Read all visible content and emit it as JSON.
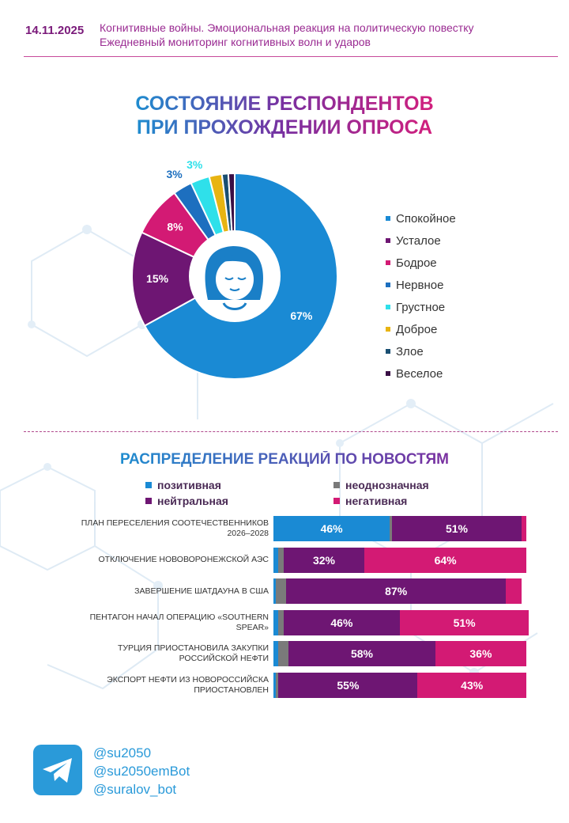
{
  "header": {
    "date": "14.11.2025",
    "line1": "Когнитивные войны. Эмоциональная реакция на политическую повестку",
    "line2": "Ежедневный мониторинг когнитивных волн и ударов"
  },
  "pie_title": {
    "line1": "СОСТОЯНИЕ РЕСПОНДЕНТОВ",
    "line2": "ПРИ ПРОХОЖДЕНИИ ОПРОСА"
  },
  "bars_title": "РАСПРЕДЕЛЕНИЕ РЕАКЦИЙ ПО НОВОСТЯМ",
  "icons": {
    "center": "face-icon",
    "social": "telegram-icon"
  },
  "chart_data": [
    {
      "type": "pie",
      "title": "СОСТОЯНИЕ РЕСПОНДЕНТОВ ПРИ ПРОХОЖДЕНИИ ОПРОСА",
      "categories": [
        "Спокойное",
        "Усталое",
        "Бодрое",
        "Нервное",
        "Грустное",
        "Доброе",
        "Злое",
        "Веселое"
      ],
      "values": [
        67,
        15,
        8,
        3,
        3,
        2,
        1,
        1
      ],
      "labels": [
        "67%",
        "15%",
        "8%",
        "3%",
        "3%",
        "",
        "",
        ""
      ],
      "colors": [
        "#1a8ad4",
        "#6e1673",
        "#d31a74",
        "#1d6fbf",
        "#2fe0ea",
        "#e8b412",
        "#1a4f72",
        "#3a0f45"
      ],
      "legend": "right"
    },
    {
      "type": "bar",
      "orientation": "horizontal-stacked-100",
      "title": "РАСПРЕДЕЛЕНИЕ РЕАКЦИЙ ПО НОВОСТЯМ",
      "categories": [
        [
          "ПЛАН ПЕРЕСЕЛЕНИЯ СООТЕЧЕСТВЕННИКОВ",
          "2026–2028"
        ],
        [
          "ОТКЛЮЧЕНИЕ НОВОВОРОНЕЖСКОЙ АЭС"
        ],
        [
          "ЗАВЕРШЕНИЕ ШАТДАУНА В США"
        ],
        [
          "ПЕНТАГОН НАЧАЛ ОПЕРАЦИЮ «SOUTHERN",
          "SPEAR»"
        ],
        [
          "ТУРЦИЯ ПРИОСТАНОВИЛА ЗАКУПКИ",
          "РОССИЙСКОЙ НЕФТИ"
        ],
        [
          "ЭКСПОРТ НЕФТИ ИЗ НОВОРОССИЙСКА",
          "ПРИОСТАНОВЛЕН"
        ]
      ],
      "series": [
        {
          "name": "позитивная",
          "color": "#1a8ad4",
          "values": [
            46,
            2,
            1,
            2,
            2,
            1
          ]
        },
        {
          "name": "неоднозначная",
          "color": "#7a7a7a",
          "values": [
            1,
            2,
            4,
            2,
            4,
            1
          ]
        },
        {
          "name": "нейтральная",
          "color": "#6e1673",
          "values": [
            51,
            32,
            87,
            46,
            58,
            55
          ]
        },
        {
          "name": "негативная",
          "color": "#d31a74",
          "values": [
            2,
            64,
            6,
            51,
            36,
            43
          ]
        }
      ],
      "legend": "top"
    }
  ],
  "social": {
    "handles": [
      "@su2050",
      "@su2050emBot",
      "@suralov_bot"
    ]
  }
}
